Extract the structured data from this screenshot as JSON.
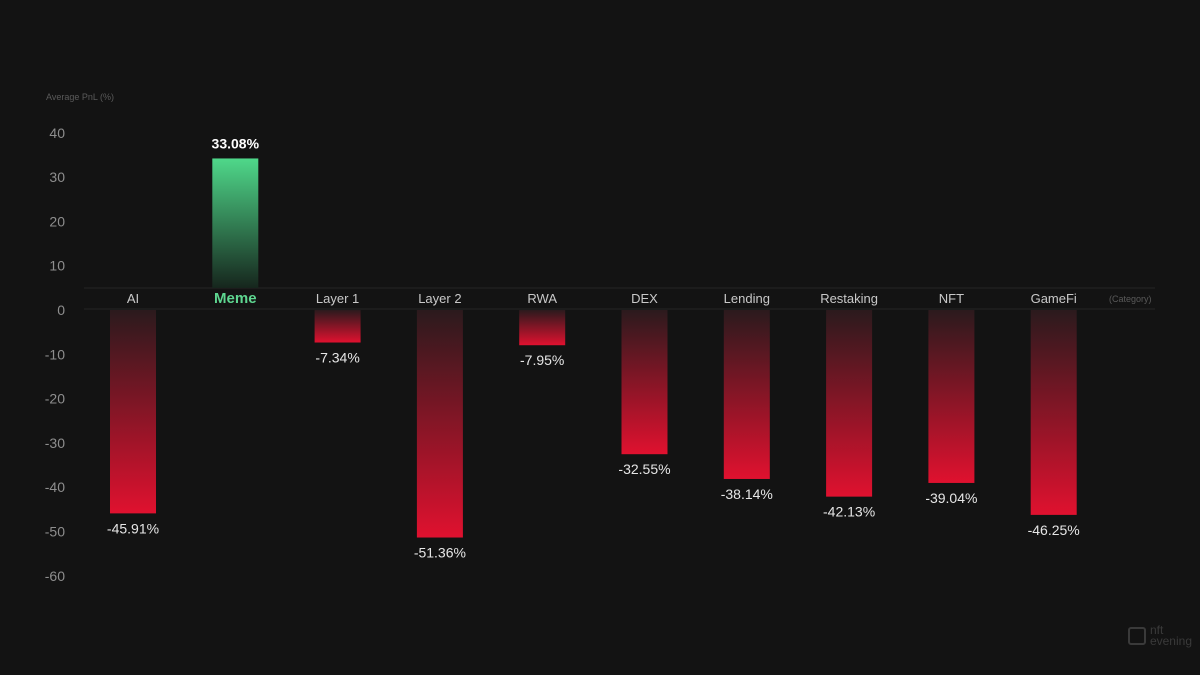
{
  "chart_data": {
    "type": "bar",
    "title": "",
    "ylabel": "Average PnL (%)",
    "xlabel": "(Category)",
    "categories": [
      "AI",
      "Meme",
      "Layer 1",
      "Layer 2",
      "RWA",
      "DEX",
      "Lending",
      "Restaking",
      "NFT",
      "GameFi"
    ],
    "values": [
      -45.91,
      33.08,
      -7.34,
      -51.36,
      -7.95,
      -32.55,
      -38.14,
      -42.13,
      -39.04,
      -46.25
    ],
    "value_labels": [
      "-45.91%",
      "33.08%",
      "-7.34%",
      "-51.36%",
      "-7.95%",
      "-32.55%",
      "-38.14%",
      "-42.13%",
      "-39.04%",
      "-46.25%"
    ],
    "highlight_category": "Meme",
    "yticks": [
      40,
      30,
      20,
      10,
      0,
      -10,
      -20,
      -30,
      -40,
      -50,
      -60
    ],
    "ylim": [
      -60,
      45
    ],
    "grid": false,
    "colors": {
      "positive_top": "#4fd88a",
      "positive_bottom": "#16261d",
      "negative_top": "#2b1a1d",
      "negative_bottom": "#e0112f",
      "background": "#131313"
    }
  },
  "watermark": {
    "line1": "nft",
    "line2": "evening"
  }
}
